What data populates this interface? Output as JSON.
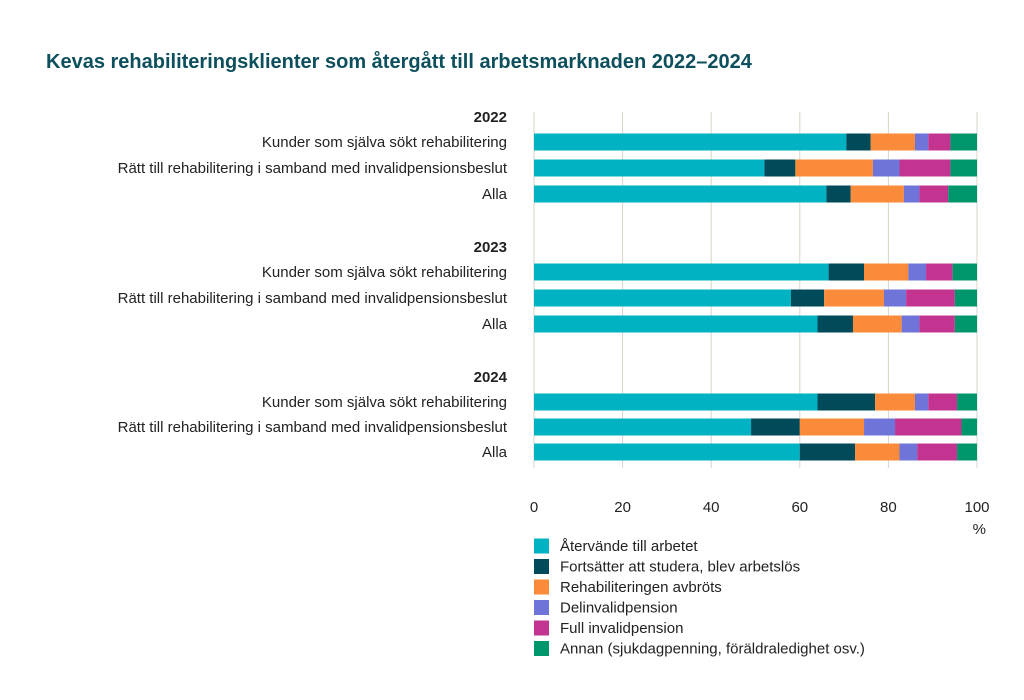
{
  "chart_data": {
    "type": "bar",
    "orientation": "horizontal",
    "stacked": true,
    "title": "Kevas rehabiliteringsklienter som återgått till arbetsmarknaden 2022–2024",
    "xlabel": "%",
    "xlim": [
      0,
      100
    ],
    "xticks": [
      0,
      20,
      40,
      60,
      80,
      100
    ],
    "grid": true,
    "legend_position": "bottom",
    "groups": [
      {
        "label": "2022",
        "categories": [
          "Kunder som själva sökt rehabilitering",
          "Rätt till rehabilitering i samband med invalidpensionsbeslut",
          "Alla"
        ]
      },
      {
        "label": "2023",
        "categories": [
          "Kunder som själva sökt rehabilitering",
          "Rätt till rehabilitering i samband med invalidpensionsbeslut",
          "Alla"
        ]
      },
      {
        "label": "2024",
        "categories": [
          "Kunder som själva sökt rehabilitering",
          "Rätt till rehabilitering i samband med invalidpensionsbeslut",
          "Alla"
        ]
      }
    ],
    "series": [
      {
        "name": "Återvände till arbetet",
        "color": "#00b2c2",
        "values": [
          70.5,
          52,
          66,
          66.5,
          58,
          64,
          64,
          49,
          60
        ]
      },
      {
        "name": "Fortsätter att studera, blev arbetslös",
        "color": "#004a5a",
        "values": [
          5.5,
          7,
          5.5,
          8,
          7.5,
          8,
          13,
          11,
          12.5
        ]
      },
      {
        "name": "Rehabiliteringen avbröts",
        "color": "#f98b3a",
        "values": [
          10,
          17.5,
          12,
          10,
          13.5,
          11,
          9,
          14.5,
          10
        ]
      },
      {
        "name": "Delinvalidpension",
        "color": "#6f74d9",
        "values": [
          3,
          6,
          3.5,
          4,
          5,
          4,
          3,
          7,
          4
        ]
      },
      {
        "name": "Full invalidpension",
        "color": "#c2348f",
        "values": [
          5,
          11.5,
          6.5,
          6,
          11,
          8,
          6.5,
          15,
          9
        ]
      },
      {
        "name": "Annan (sjukdagpenning, föräldraledighet osv.)",
        "color": "#00966b",
        "values": [
          6,
          6,
          6.5,
          5.5,
          5,
          5,
          4.5,
          3.5,
          4.5
        ]
      }
    ]
  }
}
